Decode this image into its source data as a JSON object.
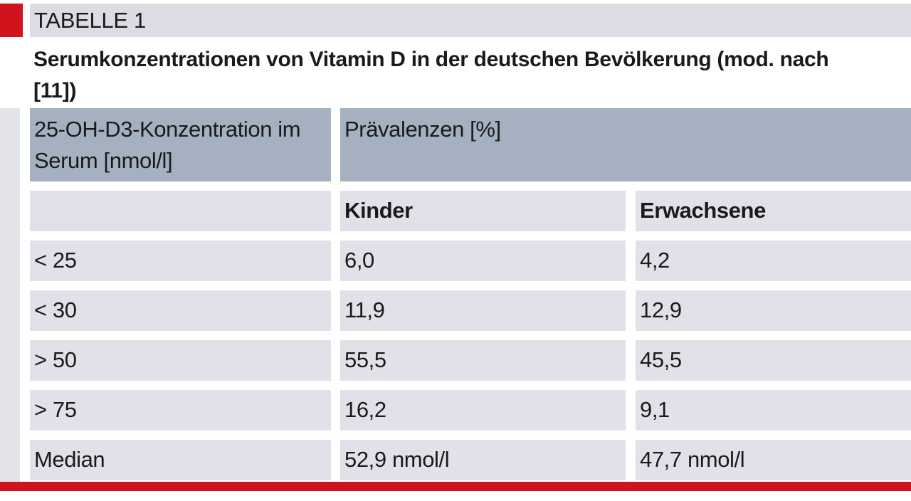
{
  "header": {
    "label": "TABELLE 1",
    "title": "Serumkonzentrationen von Vitamin D in der deutschen Bevölkerung (mod. nach [11])"
  },
  "table": {
    "columns": [
      "25-OH-D3-Konzentration im Serum [nmol/l]",
      "Prävalenzen [%]"
    ],
    "subheader": [
      "Kinder",
      "Erwachsene"
    ],
    "rows": [
      [
        "< 25",
        "6,0",
        "4,2"
      ],
      [
        "< 30",
        "11,9",
        "12,9"
      ],
      [
        "> 50",
        "55,5",
        "45,5"
      ],
      [
        "> 75",
        "16,2",
        "9,1"
      ],
      [
        "Median",
        "52,9 nmol/l",
        "47,7 nmol/l"
      ]
    ]
  }
}
